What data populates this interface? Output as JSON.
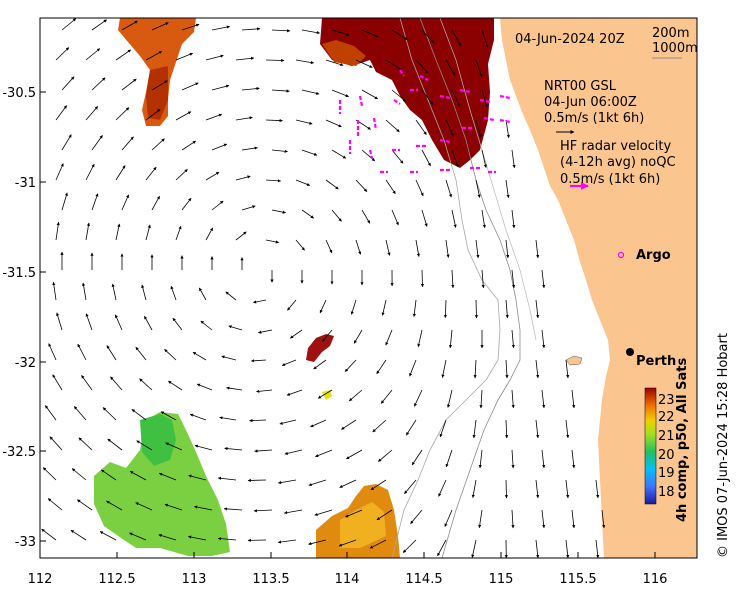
{
  "map": {
    "date_label": "04-Jun-2024 20Z",
    "isobath_labels": [
      "200m",
      "1000m"
    ],
    "x_ticks": [
      "112",
      "112.5",
      "113",
      "113.5",
      "114",
      "114.5",
      "115",
      "115.5",
      "116"
    ],
    "y_ticks": [
      "-30.5",
      "-31",
      "-31.5",
      "-32",
      "-32.5",
      "-33"
    ],
    "legend": {
      "model_name": "NRT00 GSL",
      "model_time": "04-Jun 06:00Z",
      "model_scale": "0.5m/s (1kt 6h)",
      "radar_title": "HF radar velocity",
      "radar_sub": "(4-12h avg) noQC",
      "radar_scale": "0.5m/s (1kt 6h)"
    },
    "places": {
      "argo": "Argo",
      "perth": "Perth"
    },
    "colorbar": {
      "ticks": [
        "23",
        "22",
        "21",
        "20",
        "19",
        "18"
      ],
      "label": "4h comp, p50, All Sats"
    },
    "credit": "© IMOS 07-Jun-2024 15:28 Hobart",
    "colors": {
      "land": "#fbc590",
      "radar_vector": "#ff00ff",
      "perth_marker": "#000000"
    }
  }
}
